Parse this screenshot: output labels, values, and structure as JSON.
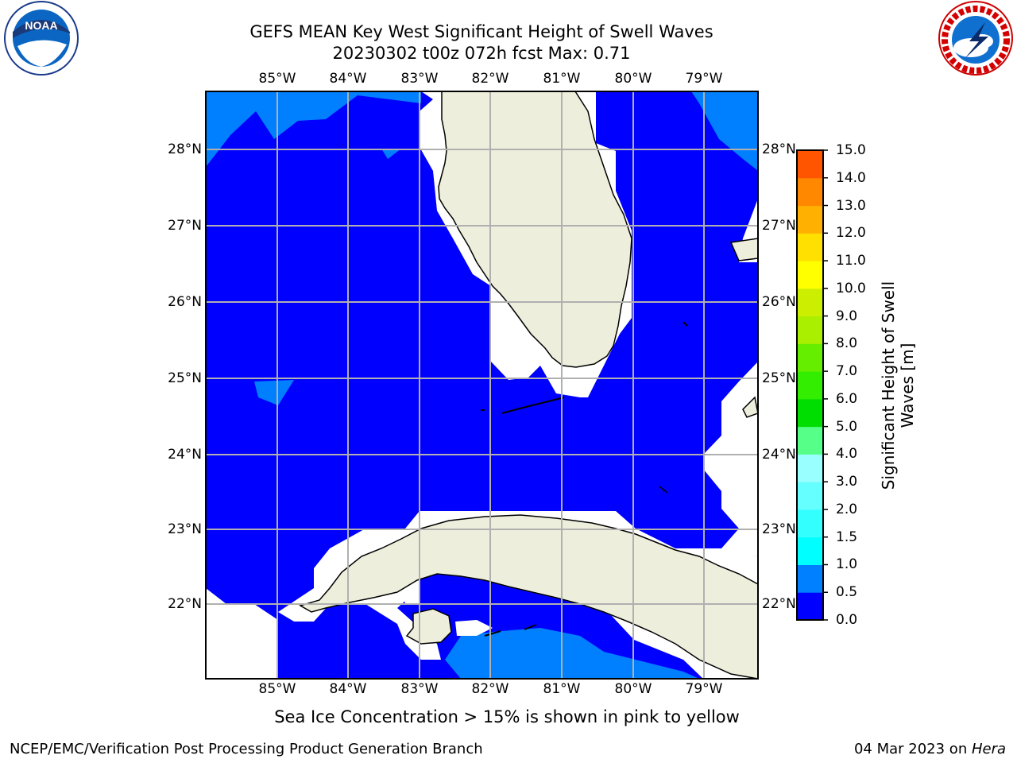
{
  "title": {
    "line1": "GEFS MEAN Key West Significant Height of Swell Waves",
    "line2": "20230302 t00z 072h fcst   Max: 0.71"
  },
  "logos": {
    "left": {
      "icon": "noaa-logo",
      "text": "NOAA"
    },
    "right": {
      "icon": "nws-logo",
      "text": "NATIONAL WEATHER SERVICE"
    }
  },
  "map": {
    "lon_labels": [
      "85°W",
      "84°W",
      "83°W",
      "82°W",
      "81°W",
      "80°W",
      "79°W"
    ],
    "lat_labels": [
      "28°N",
      "27°N",
      "26°N",
      "25°N",
      "24°N",
      "23°N",
      "22°N"
    ],
    "colors": {
      "ocean_low": "#0000ff",
      "ocean_mid": "#0080ff",
      "land": "#eeeedd",
      "grid": "#b0b0b0"
    }
  },
  "colorbar": {
    "label": "Significant Height of Swell Waves [m]",
    "ticks": [
      "0.0",
      "0.5",
      "1.0",
      "1.5",
      "2.0",
      "3.0",
      "4.0",
      "5.0",
      "6.0",
      "7.0",
      "8.0",
      "9.0",
      "10.0",
      "11.0",
      "12.0",
      "13.0",
      "14.0",
      "15.0"
    ],
    "colors": [
      "#0000ff",
      "#0080ff",
      "#00ffff",
      "#33ffff",
      "#66ffff",
      "#99ffff",
      "#55ff88",
      "#00dd00",
      "#33ee00",
      "#66ee00",
      "#aaee00",
      "#ccee00",
      "#ffff00",
      "#ffe000",
      "#ffb000",
      "#ff8800",
      "#ff5500",
      "#ff2200",
      "#ff0000"
    ]
  },
  "footnote": "Sea Ice Concentration > 15% is shown in pink to yellow",
  "credit": "NCEP/EMC/Verification Post Processing Product Generation Branch",
  "date": {
    "text": "04 Mar 2023 on ",
    "host": "Hera"
  }
}
